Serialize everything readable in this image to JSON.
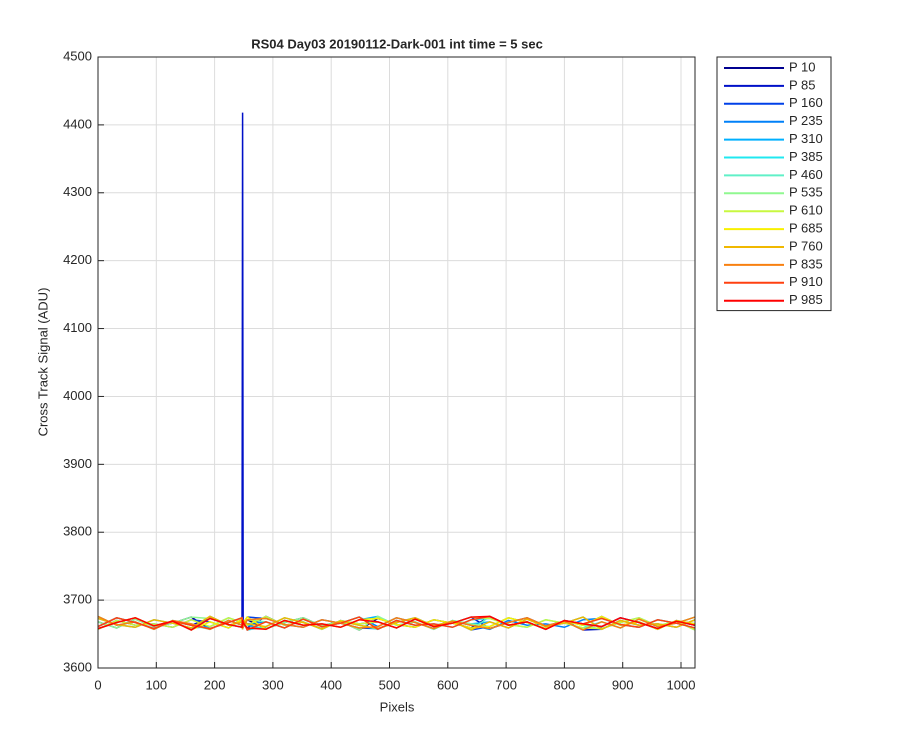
{
  "chart_data": {
    "type": "line",
    "title": "RS04 Day03 20190112-Dark-001 int time = 5 sec",
    "x_label": "Pixels",
    "y_label": "Cross Track Signal (ADU)",
    "xlim": [
      0,
      1024
    ],
    "ylim": [
      3600,
      4500
    ],
    "xticks": [
      0,
      100,
      200,
      300,
      400,
      500,
      600,
      700,
      800,
      900,
      1000
    ],
    "yticks": [
      3600,
      3700,
      3800,
      3900,
      4000,
      4100,
      4200,
      4300,
      4400,
      4500
    ],
    "grid": true,
    "legend": "outside-right",
    "x": [
      0,
      32,
      64,
      96,
      128,
      160,
      192,
      224,
      247,
      248,
      249,
      256,
      288,
      320,
      352,
      384,
      416,
      448,
      480,
      512,
      544,
      576,
      608,
      640,
      672,
      704,
      736,
      768,
      800,
      832,
      864,
      896,
      928,
      960,
      992,
      1024
    ],
    "series": [
      {
        "name": "P 10",
        "color": "#000090",
        "values": [
          3668,
          3659,
          3672,
          3661,
          3666,
          3675,
          3657,
          3670,
          3663,
          3665,
          3660,
          3671,
          3658,
          3667,
          3674,
          3662,
          3669,
          3656,
          3673,
          3664,
          3660,
          3671,
          3666,
          3659,
          3676,
          3663,
          3668,
          3657,
          3670,
          3665,
          3661,
          3674,
          3667,
          3658,
          3669,
          3663
        ]
      },
      {
        "name": "P 85",
        "color": "#0010c8",
        "values": [
          3661,
          3674,
          3667,
          3658,
          3669,
          3663,
          3673,
          3664,
          3660,
          4418,
          3666,
          3659,
          3676,
          3663,
          3668,
          3657,
          3670,
          3665,
          3668,
          3659,
          3672,
          3661,
          3666,
          3675,
          3658,
          3667,
          3674,
          3662,
          3669,
          3656,
          3657,
          3670,
          3663,
          3665,
          3660,
          3671
        ]
      },
      {
        "name": "P 160",
        "color": "#0040e8",
        "values": [
          3657,
          3670,
          3663,
          3665,
          3660,
          3671,
          3668,
          3659,
          3672,
          3661,
          3666,
          3675,
          3673,
          3664,
          3660,
          3671,
          3666,
          3659,
          3658,
          3667,
          3674,
          3662,
          3669,
          3656,
          3661,
          3674,
          3667,
          3658,
          3669,
          3663,
          3676,
          3663,
          3668,
          3657,
          3670,
          3665
        ]
      },
      {
        "name": "P 235",
        "color": "#0080f8",
        "values": [
          3658,
          3667,
          3674,
          3662,
          3669,
          3656,
          3676,
          3663,
          3668,
          3657,
          3670,
          3665,
          3668,
          3659,
          3672,
          3661,
          3666,
          3675,
          3661,
          3674,
          3667,
          3658,
          3669,
          3663,
          3657,
          3670,
          3663,
          3665,
          3660,
          3671,
          3673,
          3664,
          3660,
          3671,
          3666,
          3659
        ]
      },
      {
        "name": "P 310",
        "color": "#00b0ff",
        "values": [
          3673,
          3664,
          3660,
          3671,
          3666,
          3659,
          3661,
          3674,
          3667,
          3658,
          3669,
          3663,
          3657,
          3670,
          3663,
          3665,
          3660,
          3671,
          3676,
          3663,
          3668,
          3657,
          3670,
          3665,
          3668,
          3659,
          3672,
          3661,
          3666,
          3675,
          3658,
          3667,
          3674,
          3662,
          3669,
          3656
        ]
      },
      {
        "name": "P 385",
        "color": "#20e8f0",
        "values": [
          3676,
          3663,
          3668,
          3657,
          3670,
          3665,
          3658,
          3667,
          3674,
          3662,
          3669,
          3656,
          3661,
          3674,
          3667,
          3658,
          3669,
          3663,
          3657,
          3670,
          3663,
          3665,
          3660,
          3671,
          3673,
          3664,
          3660,
          3671,
          3666,
          3659,
          3668,
          3659,
          3672,
          3661,
          3666,
          3675
        ]
      },
      {
        "name": "P 460",
        "color": "#60f0c8",
        "values": [
          3661,
          3674,
          3667,
          3658,
          3669,
          3663,
          3657,
          3670,
          3663,
          3665,
          3660,
          3671,
          3668,
          3659,
          3672,
          3661,
          3666,
          3675,
          3658,
          3667,
          3674,
          3662,
          3669,
          3656,
          3676,
          3663,
          3668,
          3657,
          3670,
          3665,
          3673,
          3664,
          3660,
          3671,
          3666,
          3659
        ]
      },
      {
        "name": "P 535",
        "color": "#90f890",
        "values": [
          3668,
          3659,
          3672,
          3661,
          3666,
          3675,
          3673,
          3664,
          3660,
          3671,
          3666,
          3659,
          3658,
          3667,
          3674,
          3662,
          3669,
          3656,
          3676,
          3663,
          3668,
          3657,
          3670,
          3665,
          3661,
          3674,
          3667,
          3658,
          3669,
          3663,
          3657,
          3670,
          3663,
          3665,
          3660,
          3671
        ]
      },
      {
        "name": "P 610",
        "color": "#c8f840",
        "values": [
          3657,
          3670,
          3663,
          3665,
          3660,
          3671,
          3661,
          3674,
          3667,
          3658,
          3669,
          3663,
          3676,
          3663,
          3668,
          3657,
          3670,
          3665,
          3668,
          3659,
          3672,
          3661,
          3666,
          3675,
          3673,
          3664,
          3660,
          3671,
          3666,
          3659,
          3658,
          3667,
          3674,
          3662,
          3669,
          3656
        ]
      },
      {
        "name": "P 685",
        "color": "#f8f000",
        "values": [
          3658,
          3667,
          3674,
          3662,
          3669,
          3656,
          3668,
          3659,
          3672,
          3661,
          3666,
          3675,
          3657,
          3670,
          3663,
          3665,
          3660,
          3671,
          3673,
          3664,
          3660,
          3671,
          3666,
          3659,
          3661,
          3674,
          3667,
          3658,
          3669,
          3663,
          3676,
          3663,
          3668,
          3657,
          3670,
          3665
        ]
      },
      {
        "name": "P 760",
        "color": "#f0b800",
        "values": [
          3673,
          3664,
          3660,
          3671,
          3666,
          3659,
          3676,
          3663,
          3668,
          3657,
          3670,
          3665,
          3661,
          3674,
          3667,
          3658,
          3669,
          3663,
          3658,
          3667,
          3674,
          3662,
          3669,
          3656,
          3668,
          3659,
          3672,
          3661,
          3666,
          3675,
          3657,
          3670,
          3663,
          3665,
          3660,
          3671
        ]
      },
      {
        "name": "P 835",
        "color": "#f88010",
        "values": [
          3676,
          3663,
          3668,
          3657,
          3670,
          3665,
          3657,
          3670,
          3663,
          3665,
          3660,
          3671,
          3673,
          3664,
          3660,
          3671,
          3666,
          3659,
          3661,
          3674,
          3667,
          3658,
          3669,
          3663,
          3658,
          3667,
          3674,
          3662,
          3669,
          3656,
          3668,
          3659,
          3672,
          3661,
          3666,
          3675
        ]
      },
      {
        "name": "P 910",
        "color": "#ff4010",
        "values": [
          3661,
          3674,
          3667,
          3658,
          3669,
          3663,
          3658,
          3667,
          3674,
          3662,
          3669,
          3656,
          3668,
          3659,
          3672,
          3661,
          3666,
          3675,
          3657,
          3670,
          3663,
          3665,
          3660,
          3671,
          3676,
          3663,
          3668,
          3657,
          3670,
          3665,
          3673,
          3664,
          3660,
          3671,
          3666,
          3659
        ]
      },
      {
        "name": "P 985",
        "color": "#ff0000",
        "values": [
          3658,
          3667,
          3674,
          3662,
          3669,
          3656,
          3673,
          3664,
          3660,
          3671,
          3666,
          3659,
          3657,
          3670,
          3663,
          3665,
          3660,
          3671,
          3668,
          3659,
          3672,
          3661,
          3666,
          3675,
          3676,
          3663,
          3668,
          3657,
          3670,
          3665,
          3661,
          3674,
          3667,
          3658,
          3669,
          3663
        ]
      }
    ]
  }
}
